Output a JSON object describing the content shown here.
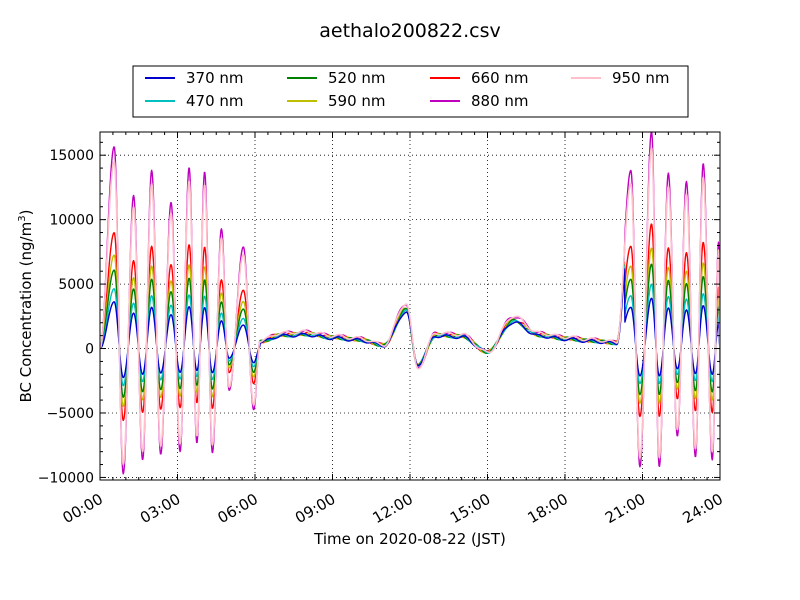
{
  "chart_data": {
    "type": "line",
    "title": "aethalo200822.csv",
    "xlabel": "Time on 2020-08-22 (JST)",
    "ylabel": "BC Concentration (ng/m",
    "ylabel_sup": "3",
    "ylabel_tail": ")",
    "xlim": [
      0,
      24
    ],
    "ylim": [
      -10200,
      16800
    ],
    "yticks": [
      -10000,
      -5000,
      0,
      5000,
      10000,
      15000
    ],
    "ytick_labels": [
      "−10000",
      "−5000",
      "0",
      "5000",
      "10000",
      "15000"
    ],
    "xticks": [
      0,
      3,
      6,
      9,
      12,
      15,
      18,
      21,
      24
    ],
    "xtick_labels": [
      "00:00",
      "03:00",
      "06:00",
      "09:00",
      "12:00",
      "15:00",
      "18:00",
      "21:00",
      "24:00"
    ],
    "grid": true,
    "legend_position": "top-center",
    "series": [
      {
        "name": "370 nm",
        "color": "#0000cc",
        "scale": 0.25
      },
      {
        "name": "470 nm",
        "color": "#00bfbf",
        "scale": 0.32
      },
      {
        "name": "520 nm",
        "color": "#008000",
        "scale": 0.42
      },
      {
        "name": "590 nm",
        "color": "#bfbf00",
        "scale": 0.5
      },
      {
        "name": "660 nm",
        "color": "#ff0000",
        "scale": 0.62
      },
      {
        "name": "880 nm",
        "color": "#bf00bf",
        "scale": 1.08
      },
      {
        "name": "950 nm",
        "color": "#ffc0cb",
        "scale": 1.0
      }
    ],
    "oscillation_peaks_880nm": [
      {
        "t": 0.55,
        "v": 14500
      },
      {
        "t": 0.9,
        "v": -9000
      },
      {
        "t": 1.3,
        "v": 11000
      },
      {
        "t": 1.65,
        "v": -8000
      },
      {
        "t": 2.0,
        "v": 12800
      },
      {
        "t": 2.35,
        "v": -7600
      },
      {
        "t": 2.75,
        "v": 10500
      },
      {
        "t": 3.1,
        "v": -7400
      },
      {
        "t": 3.45,
        "v": 13000
      },
      {
        "t": 3.75,
        "v": -6800
      },
      {
        "t": 4.05,
        "v": 12700
      },
      {
        "t": 4.35,
        "v": -7500
      },
      {
        "t": 4.7,
        "v": 8600
      },
      {
        "t": 5.0,
        "v": -3000
      },
      {
        "t": 5.55,
        "v": 7300
      },
      {
        "t": 5.95,
        "v": -4400
      },
      {
        "t": 20.55,
        "v": 12800
      },
      {
        "t": 20.9,
        "v": -8500
      },
      {
        "t": 21.35,
        "v": 15600
      },
      {
        "t": 21.65,
        "v": -8500
      },
      {
        "t": 22.0,
        "v": 12600
      },
      {
        "t": 22.35,
        "v": -6300
      },
      {
        "t": 22.7,
        "v": 12000
      },
      {
        "t": 23.05,
        "v": -7800
      },
      {
        "t": 23.35,
        "v": 13300
      },
      {
        "t": 23.7,
        "v": -8000
      },
      {
        "t": 23.95,
        "v": 7700
      }
    ],
    "midday_baseline_880nm": [
      {
        "t": 6.2,
        "v": 600
      },
      {
        "t": 7.0,
        "v": 1200
      },
      {
        "t": 8.0,
        "v": 1300
      },
      {
        "t": 9.0,
        "v": 1000
      },
      {
        "t": 10.0,
        "v": 800
      },
      {
        "t": 11.0,
        "v": 300
      },
      {
        "t": 11.85,
        "v": 3500
      },
      {
        "t": 12.3,
        "v": -1500
      },
      {
        "t": 13.0,
        "v": 1200
      },
      {
        "t": 14.0,
        "v": 1100
      },
      {
        "t": 15.0,
        "v": -300
      },
      {
        "t": 16.0,
        "v": 2500
      },
      {
        "t": 17.0,
        "v": 1200
      },
      {
        "t": 18.0,
        "v": 900
      },
      {
        "t": 19.0,
        "v": 700
      },
      {
        "t": 20.0,
        "v": 500
      }
    ]
  }
}
